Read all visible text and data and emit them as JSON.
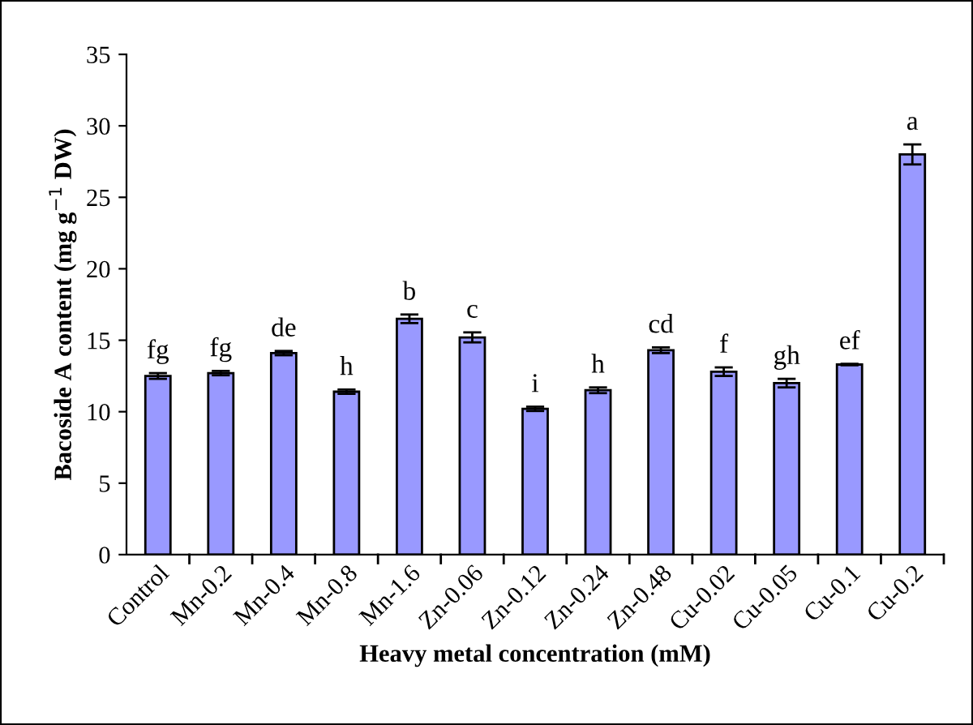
{
  "chart_data": {
    "type": "bar",
    "xlabel": "Heavy metal concentration (mM)",
    "ylabel": "Bacoside A content (mg g$^{−1}$ DW)",
    "categories": [
      "Control",
      "Mn-0.2",
      "Mn-0.4",
      "Mn-0.8",
      "Mn-1.6",
      "Zn-0.06",
      "Zn-0.12",
      "Zn-0.24",
      "Zn-0.48",
      "Cu-0.02",
      "Cu-0.05",
      "Cu-0.1",
      "Cu-0.2"
    ],
    "values": [
      12.5,
      12.7,
      14.1,
      11.4,
      16.5,
      15.2,
      10.2,
      11.5,
      14.3,
      12.8,
      12.0,
      13.3,
      28.0
    ],
    "errors": [
      0.2,
      0.15,
      0.15,
      0.15,
      0.3,
      0.35,
      0.15,
      0.2,
      0.2,
      0.3,
      0.3,
      0.05,
      0.7
    ],
    "color": "#9999ff",
    "ylim": [
      0,
      35
    ],
    "yticks": [
      0,
      5,
      10,
      15,
      20,
      25,
      30,
      35
    ],
    "grid": false,
    "legend": false,
    "annotations": [
      {
        "text": "fg",
        "x": "Control",
        "y": 12.7
      },
      {
        "text": "fg",
        "x": "Mn-0.2",
        "y": 12.85
      },
      {
        "text": "de",
        "x": "Mn-0.4",
        "y": 14.25
      },
      {
        "text": "h",
        "x": "Mn-0.8",
        "y": 11.55
      },
      {
        "text": "b",
        "x": "Mn-1.6",
        "y": 16.8
      },
      {
        "text": "c",
        "x": "Zn-0.06",
        "y": 15.55
      },
      {
        "text": "i",
        "x": "Zn-0.12",
        "y": 10.35
      },
      {
        "text": "h",
        "x": "Zn-0.24",
        "y": 11.7
      },
      {
        "text": "cd",
        "x": "Zn-0.48",
        "y": 14.5
      },
      {
        "text": "f",
        "x": "Cu-0.02",
        "y": 13.1
      },
      {
        "text": "gh",
        "x": "Cu-0.05",
        "y": 12.3
      },
      {
        "text": "ef",
        "x": "Cu-0.1",
        "y": 13.35
      },
      {
        "text": "a",
        "x": "Cu-0.2",
        "y": 28.7
      }
    ]
  }
}
